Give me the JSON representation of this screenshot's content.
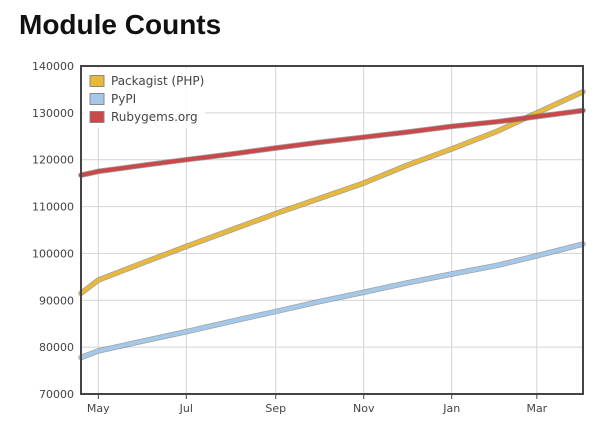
{
  "chart_data": {
    "type": "line",
    "title": "Module Counts",
    "xlabel": "",
    "ylabel": "",
    "ylim": [
      70000,
      140000
    ],
    "xlim": [
      "2012-04-19",
      "2013-04-02"
    ],
    "y_ticks": [
      70000,
      80000,
      90000,
      100000,
      110000,
      120000,
      130000,
      140000
    ],
    "x_ticks": [
      {
        "label": "May",
        "date": "2012-05-01"
      },
      {
        "label": "Jul",
        "date": "2012-07-01"
      },
      {
        "label": "Sep",
        "date": "2012-09-01"
      },
      {
        "label": "Nov",
        "date": "2012-11-01"
      },
      {
        "label": "Jan",
        "date": "2013-01-01"
      },
      {
        "label": "Mar",
        "date": "2013-03-01"
      }
    ],
    "grid": true,
    "legend": {
      "position": "top-left"
    },
    "series": [
      {
        "name": "Packagist (PHP)",
        "color": "#e8b83a",
        "x": [
          "2012-04-19",
          "2012-05-01",
          "2012-06-01",
          "2012-07-01",
          "2012-08-01",
          "2012-09-01",
          "2012-10-01",
          "2012-11-01",
          "2012-12-01",
          "2013-01-01",
          "2013-02-01",
          "2013-03-01",
          "2013-04-02"
        ],
        "y": [
          91500,
          94300,
          98000,
          101500,
          105000,
          108500,
          111700,
          115000,
          118800,
          122300,
          126000,
          130000,
          134500
        ]
      },
      {
        "name": "PyPI",
        "color": "#a4c8ea",
        "x": [
          "2012-04-19",
          "2012-05-01",
          "2012-06-01",
          "2012-07-01",
          "2012-08-01",
          "2012-09-01",
          "2012-10-01",
          "2012-11-01",
          "2012-12-01",
          "2013-01-01",
          "2013-02-01",
          "2013-03-01",
          "2013-04-02"
        ],
        "y": [
          77800,
          79200,
          81300,
          83300,
          85500,
          87600,
          89700,
          91700,
          93700,
          95600,
          97400,
          99500,
          102000
        ]
      },
      {
        "name": "Rubygems.org",
        "color": "#c9494a",
        "x": [
          "2012-04-19",
          "2012-05-01",
          "2012-06-01",
          "2012-07-01",
          "2012-08-01",
          "2012-09-01",
          "2012-10-01",
          "2012-11-01",
          "2012-12-01",
          "2013-01-01",
          "2013-02-01",
          "2013-03-01",
          "2013-04-02"
        ],
        "y": [
          116700,
          117500,
          118800,
          120000,
          121200,
          122500,
          123700,
          124800,
          125900,
          127100,
          128100,
          129200,
          130500
        ]
      }
    ]
  }
}
